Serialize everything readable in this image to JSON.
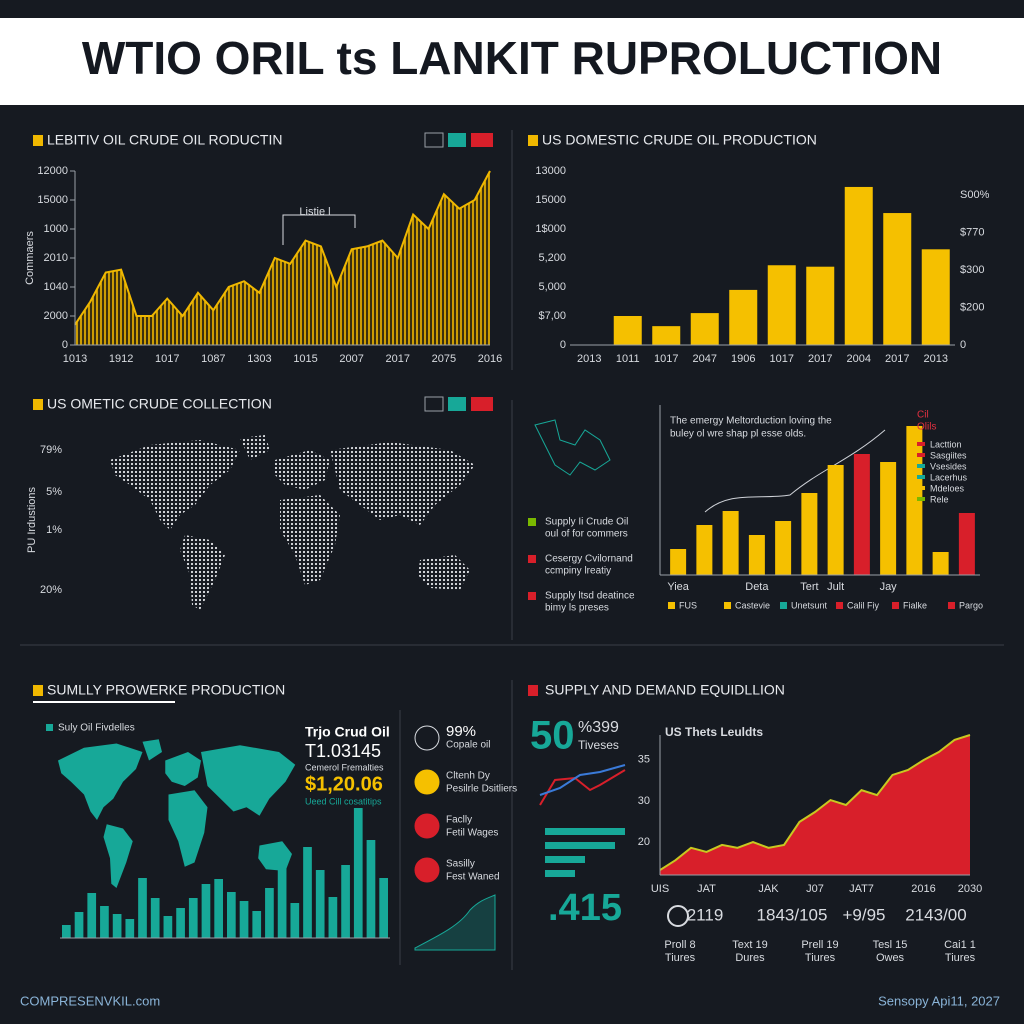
{
  "title": "WTIO ORIL ts LANKIT RUPROLUCTION",
  "footer": {
    "left": "COMPRESENVKIL.com",
    "right": "Sensopy Api11, 2027"
  },
  "chart_data": [
    {
      "type": "area",
      "title": "LEBITIV OIL CRUDE OIL RODUCTIN",
      "y_label": "Commaers",
      "annotation": "Listie l",
      "color": "#f0b800",
      "categories": [
        "1013",
        null,
        null,
        "1912",
        null,
        null,
        "1017",
        null,
        null,
        "1087",
        null,
        null,
        "1303",
        null,
        null,
        "1015",
        null,
        null,
        "2007",
        null,
        null,
        "2017",
        null,
        null,
        "2075",
        null,
        null,
        "2016"
      ],
      "values": [
        0.7,
        1.5,
        2.5,
        2.6,
        1.0,
        1.0,
        1.6,
        1.0,
        1.8,
        1.2,
        2.0,
        2.2,
        1.8,
        3.0,
        2.8,
        3.6,
        3.4,
        2.0,
        3.3,
        3.4,
        3.6,
        3.0,
        4.5,
        4.0,
        5.2,
        4.7,
        5.0,
        6.0
      ],
      "ylim": [
        0,
        6
      ],
      "yticks": [
        0,
        {
          "value": 1,
          "label": "2000"
        },
        {
          "value": 2,
          "label": "1040"
        },
        {
          "value": 3,
          "label": "2010"
        },
        {
          "value": 4,
          "label": "1000"
        },
        {
          "value": 5,
          "label": "15000"
        },
        {
          "value": 6,
          "label": "12000"
        }
      ]
    },
    {
      "type": "bar",
      "title": "US DOMESTIC CRUDE OIL PRODUCTION",
      "color": "#f5c000",
      "categories": [
        "2013",
        "1011",
        "1017",
        "2047",
        "1906",
        "1017",
        "2017",
        "2004",
        "2017",
        "2013"
      ],
      "values": [
        null,
        1.0,
        0.65,
        1.1,
        1.9,
        2.75,
        2.7,
        5.45,
        4.55,
        3.3
      ],
      "ylim": [
        0,
        6
      ],
      "yticks": [
        0,
        {
          "value": 1,
          "label": "$7,00"
        },
        {
          "value": 2,
          "label": "5,000"
        },
        {
          "value": 3,
          "label": "5,200"
        },
        {
          "value": 4,
          "label": "1$000"
        },
        {
          "value": 5,
          "label": "15000"
        },
        {
          "value": 6,
          "label": "13000"
        }
      ],
      "y2lim": [
        0,
        4.64
      ],
      "y2ticks": [
        0,
        {
          "value": 1,
          "label": "$200"
        },
        {
          "value": 2,
          "label": "$300"
        },
        {
          "value": 3,
          "label": "$770"
        },
        {
          "value": 4,
          "label": "S00%"
        }
      ]
    },
    {
      "type": "map",
      "title": "US OMETIC CRUDE COLLECTION",
      "y_label": "PU Irdustions",
      "side_labels": [
        "79%",
        "5%",
        "1%",
        "20%"
      ]
    },
    {
      "type": "bar",
      "caption": [
        "The emergy Meltorduction loving the",
        "buley ol wre shap pl esse olds."
      ],
      "categories": [
        "Yiea",
        null,
        null,
        "Deta",
        null,
        "Tert",
        "Jult",
        null,
        "Jay",
        null,
        null,
        null
      ],
      "values": [
        26,
        50,
        64,
        40,
        54,
        82,
        110,
        121,
        113,
        149,
        23,
        62
      ],
      "colors": [
        "#f5c000",
        "#f5c000",
        "#f5c000",
        "#f5c000",
        "#f5c000",
        "#f5c000",
        "#f5c000",
        "#d81f2a",
        "#f5c000",
        "#f5c000",
        "#f5c000",
        "#d81f2a"
      ],
      "ylim": [
        0,
        150
      ],
      "legend_title": [
        "Cil",
        "Olils"
      ],
      "legend": [
        {
          "name": "Lacttion",
          "color": "#d81f2a"
        },
        {
          "name": "Sasgiites",
          "color": "#d81f2a"
        },
        {
          "name": "Vsesides",
          "color": "#17a898"
        },
        {
          "name": "Lacerhus",
          "color": "#17a898"
        },
        {
          "name": "Mdeloes",
          "color": "#f5c000"
        },
        {
          "name": "Rele",
          "color": "#7ab800"
        }
      ],
      "legend_bottom": [
        {
          "name": "FUS",
          "color": "#f5c000"
        },
        {
          "name": "Castevie",
          "color": "#f5c000"
        },
        {
          "name": "Unetsunt",
          "color": "#17a898"
        },
        {
          "name": "Calil Fiy",
          "color": "#d81f2a"
        },
        {
          "name": "Fialke",
          "color": "#d81f2a"
        },
        {
          "name": "Pargo",
          "color": "#d81f2a"
        }
      ],
      "notes": [
        {
          "lines": [
            "Supply Ii Crude Oil",
            "oul of for commers"
          ],
          "color": "#7ab800"
        },
        {
          "lines": [
            "Cesergy Cvilornand",
            "ccmpiny lreatiy"
          ],
          "color": "#d81f2a"
        },
        {
          "lines": [
            "Supply ltsd deatince",
            "bimy ls preses"
          ],
          "color": "#d81f2a"
        }
      ]
    },
    {
      "type": "bar",
      "title": "SUMLLY PROWERKE PRODUCTION",
      "legend": "Suly Oil Fivdelles",
      "color": "#17a898",
      "values": [
        13,
        26,
        45,
        32,
        24,
        19,
        60,
        40,
        22,
        30,
        40,
        54,
        59,
        46,
        37,
        27,
        50,
        70,
        35,
        91,
        68,
        41,
        73,
        130,
        98,
        60
      ],
      "ylim": [
        0,
        135
      ],
      "side": [
        "Trjo Crud Oil",
        "T1.03145",
        "Cemerol Fremalties",
        "$1,20.06",
        "Ueed Cill cosatitips"
      ],
      "items": [
        [
          "99%",
          "Copale oil"
        ],
        [
          "Cltenh Dy",
          "Pesilrle Dsitliers"
        ],
        [
          "Faclly",
          "Fetil Wages"
        ],
        [
          "Sasilly",
          "Fest Waned"
        ]
      ]
    },
    {
      "type": "area",
      "title": "SUPPLY AND DEMAND EQUIDLLION",
      "subtitle": "US Thets Leuldts",
      "color": "#d81f2a",
      "headline": "50",
      "headline_sub": [
        "%399",
        "Tiveses"
      ],
      "metric": ".415",
      "categories": [
        "UIS",
        null,
        null,
        "JAT",
        null,
        null,
        null,
        "JAK",
        null,
        null,
        "J07",
        null,
        null,
        "JAT7",
        null,
        null,
        null,
        "2016",
        null,
        null,
        "2030"
      ],
      "values": [
        0.32,
        0.56,
        0.86,
        0.76,
        0.93,
        0.86,
        1.0,
        0.86,
        0.93,
        1.49,
        1.73,
        2.02,
        1.9,
        2.26,
        2.14,
        2.63,
        2.75,
        2.99,
        3.19,
        3.48,
        3.6
      ],
      "ylim": [
        0.2,
        3.6
      ],
      "yticks": [
        {
          "value": 1,
          "label": "20"
        },
        {
          "value": 2,
          "label": "30"
        },
        {
          "value": 3,
          "label": "35"
        }
      ],
      "stats": [
        "2119",
        "1843/105",
        "+9/95",
        "2143/00"
      ],
      "stat_labels": [
        [
          "Proll 8",
          "Tiures"
        ],
        [
          "Text 19",
          "Dures"
        ],
        [
          "Prell 19",
          "Tiures"
        ],
        [
          "Tesl 15",
          "Owes"
        ],
        [
          "Cai1 1",
          "Tiures"
        ]
      ]
    }
  ]
}
